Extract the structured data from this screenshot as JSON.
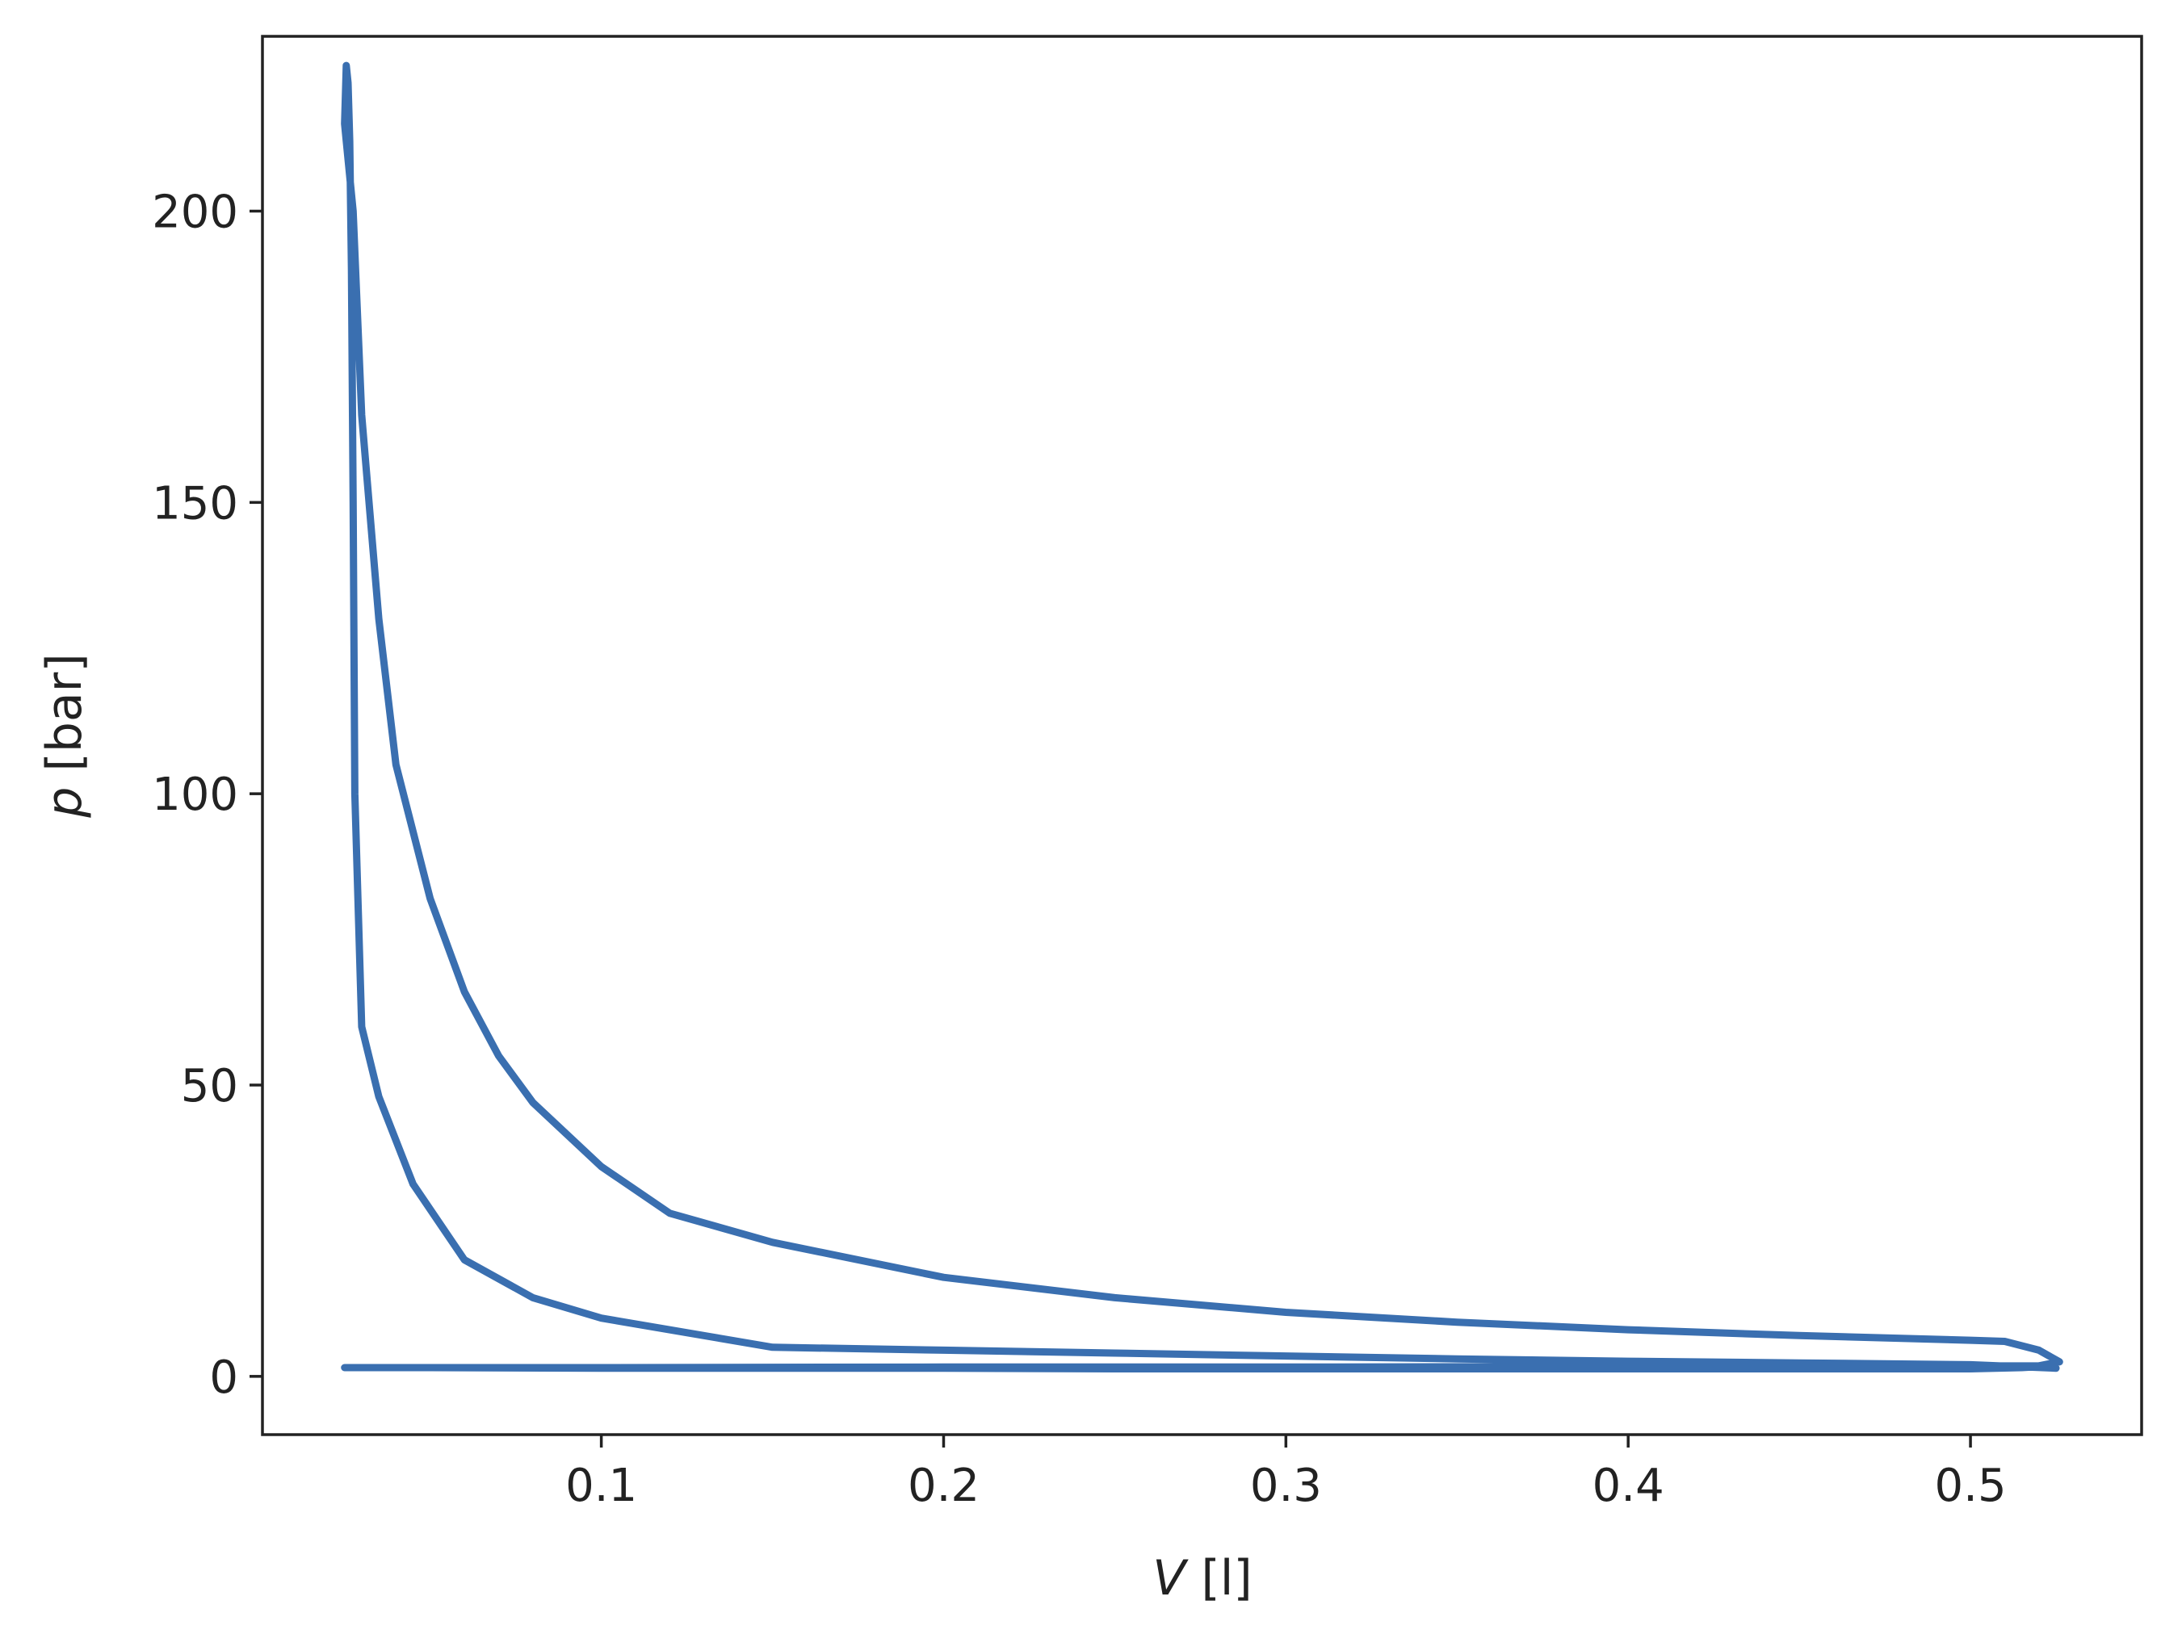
{
  "chart_data": {
    "type": "line",
    "title": "",
    "xlabel": {
      "symbol": "V",
      "unit": "[l]"
    },
    "ylabel": {
      "symbol": "p",
      "unit": "[bar]"
    },
    "xlim": [
      0.001,
      0.55
    ],
    "ylim": [
      -10,
      230
    ],
    "xticks": [
      {
        "value": 0.1,
        "label": "0.1"
      },
      {
        "value": 0.2,
        "label": "0.2"
      },
      {
        "value": 0.3,
        "label": "0.3"
      },
      {
        "value": 0.4,
        "label": "0.4"
      },
      {
        "value": 0.5,
        "label": "0.5"
      }
    ],
    "yticks": [
      {
        "value": 0,
        "label": "0"
      },
      {
        "value": 50,
        "label": "50"
      },
      {
        "value": 100,
        "label": "100"
      },
      {
        "value": 150,
        "label": "150"
      },
      {
        "value": 200,
        "label": "200"
      }
    ],
    "grid": false,
    "legend": "none",
    "colors": {
      "series": "#3a6fb0"
    },
    "series": [
      {
        "x": [
          0.025,
          0.05,
          0.1,
          0.15,
          0.2,
          0.25,
          0.3,
          0.35,
          0.4,
          0.45,
          0.5,
          0.515,
          0.524,
          0.525,
          0.5,
          0.45,
          0.4,
          0.35,
          0.3,
          0.25,
          0.2,
          0.15,
          0.1,
          0.08,
          0.06,
          0.045,
          0.035,
          0.03,
          0.028,
          0.0275,
          0.027,
          0.0265,
          0.026,
          0.0255,
          0.025,
          0.0255,
          0.0275,
          0.03,
          0.035,
          0.04,
          0.05,
          0.06,
          0.07,
          0.08,
          0.1,
          0.12,
          0.15,
          0.2,
          0.25,
          0.3,
          0.35,
          0.4,
          0.45,
          0.5,
          0.51,
          0.52,
          0.526,
          0.52,
          0.4,
          0.3,
          0.2,
          0.1,
          0.05,
          0.025
        ],
        "y": [
          1.5,
          1.5,
          1.4,
          1.4,
          1.4,
          1.3,
          1.3,
          1.3,
          1.3,
          1.3,
          1.3,
          1.5,
          1.8,
          1.4,
          2.0,
          2.3,
          2.6,
          3.0,
          3.5,
          4.0,
          4.5,
          5.0,
          10.0,
          13.5,
          20.0,
          33.0,
          48.0,
          60.0,
          100.0,
          150.0,
          190.0,
          212.0,
          222.0,
          225.0,
          215.0,
          212.0,
          200.0,
          165.0,
          130.0,
          105.0,
          82.0,
          66.0,
          55.0,
          47.0,
          36.0,
          28.0,
          23.0,
          17.0,
          13.5,
          11.0,
          9.3,
          8.0,
          7.0,
          6.2,
          6.0,
          4.5,
          2.5,
          1.8,
          1.7,
          1.6,
          1.6,
          1.5,
          1.5,
          1.5
        ]
      }
    ]
  }
}
